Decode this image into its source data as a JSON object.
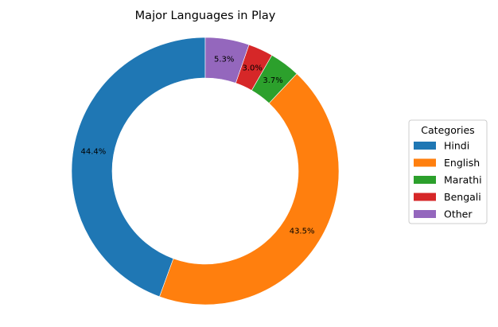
{
  "chart_data": {
    "type": "pie",
    "variant": "donut",
    "title": "Major Languages in Play",
    "categories": [
      "Hindi",
      "English",
      "Marathi",
      "Bengali",
      "Other"
    ],
    "values": [
      44.4,
      43.5,
      3.7,
      3.0,
      5.3
    ],
    "labels": [
      "44.4%",
      "43.5%",
      "3.7%",
      "3.0%",
      "5.3%"
    ],
    "colors": [
      "#1f77b4",
      "#ff7f0e",
      "#2ca02c",
      "#d62728",
      "#9467bd"
    ],
    "start_angle_deg": 90,
    "direction": "counterclockwise",
    "legend": {
      "title": "Categories",
      "placement": "right"
    }
  }
}
